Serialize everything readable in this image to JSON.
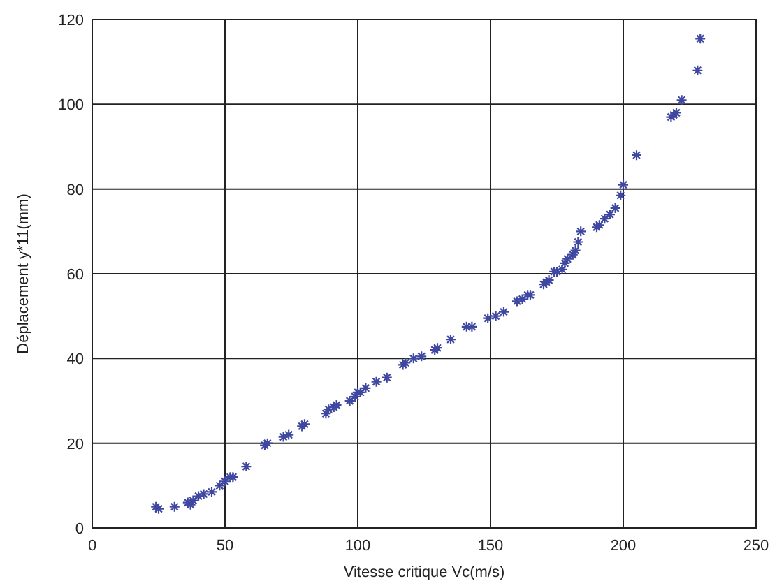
{
  "chart_data": {
    "type": "scatter",
    "xlabel": "Vitesse critique Vc(m/s)",
    "ylabel": "Déplacement y*11(mm)",
    "xlim": [
      0,
      250
    ],
    "ylim": [
      0,
      120
    ],
    "xticks": [
      0,
      50,
      100,
      150,
      200,
      250
    ],
    "yticks": [
      0,
      20,
      40,
      60,
      80,
      100,
      120
    ],
    "grid": true,
    "marker": "cross",
    "series": [
      {
        "color": "#3f48a0",
        "x": [
          24,
          25,
          31,
          36,
          37,
          38,
          40,
          42,
          45,
          48,
          50,
          52,
          53,
          58,
          65,
          66,
          72,
          74,
          79,
          80,
          88,
          89,
          91,
          92,
          97,
          99,
          100,
          101,
          103,
          107,
          111,
          117,
          118,
          121,
          124,
          129,
          130,
          135,
          141,
          143,
          149,
          152,
          155,
          160,
          162,
          164,
          165,
          170,
          171,
          172,
          174,
          175,
          177,
          178,
          179,
          181,
          182,
          183,
          184,
          190,
          191,
          193,
          195,
          197,
          199,
          200,
          205,
          218,
          219,
          220,
          222,
          228,
          229
        ],
        "values": [
          5,
          4.5,
          5,
          6,
          5.5,
          6.5,
          7.5,
          8,
          8.5,
          10,
          11,
          12,
          12,
          14.5,
          19.5,
          20,
          21.5,
          22,
          24,
          24.5,
          27,
          28,
          28.5,
          29,
          30,
          31,
          32,
          32,
          33,
          34.5,
          35.5,
          38.5,
          39,
          40,
          40.5,
          42,
          42.5,
          44.5,
          47.5,
          47.5,
          49.5,
          50,
          51,
          53.5,
          54,
          55,
          55,
          57.5,
          58,
          58.5,
          60.5,
          60.5,
          61,
          62.5,
          63.5,
          64.5,
          65.5,
          67.5,
          70,
          71,
          71.5,
          73,
          74,
          75.5,
          78.5,
          81,
          88,
          97,
          97.5,
          98,
          101,
          108,
          115.5
        ]
      }
    ]
  }
}
